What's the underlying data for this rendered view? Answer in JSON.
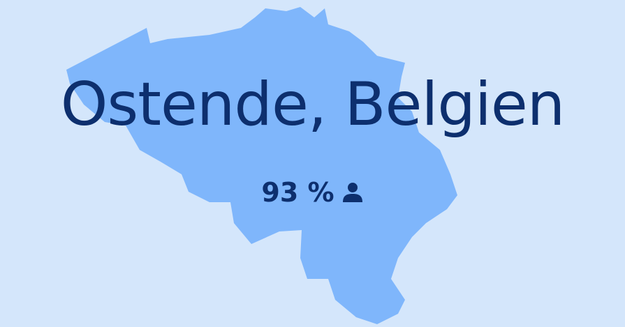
{
  "title": "Ostende, Belgien",
  "stat": "93 %"
}
